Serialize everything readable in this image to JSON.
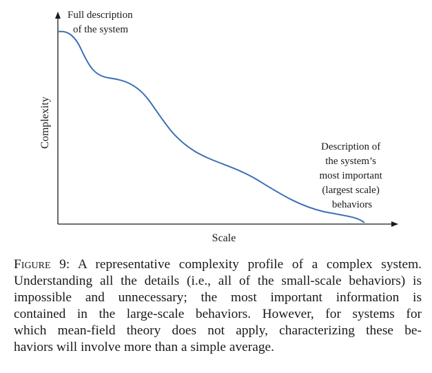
{
  "figure": {
    "axes": {
      "xlabel": "Scale",
      "ylabel": "Complexity"
    },
    "annotations": {
      "top": [
        "Full description",
        "of the system"
      ],
      "bottom": [
        "Description of",
        "the system’s",
        "most important",
        "(largest scale)",
        "behaviors"
      ]
    }
  },
  "caption": {
    "label": "Figure 9:",
    "lines": [
      "A representative complexity profile of a complex system.",
      "Understanding all the details (i.e., all of the small-scale behaviors) is",
      "impossible and unnecessary; the most important information is",
      "contained in the large-scale behaviors. However, for systems for",
      "which mean-field theory does not apply, characterizing these be-",
      "haviors will involve more than a simple average."
    ]
  },
  "colors": {
    "ink": "#1a1a1a",
    "curve": "#3a6fb5",
    "background": "#ffffff"
  }
}
